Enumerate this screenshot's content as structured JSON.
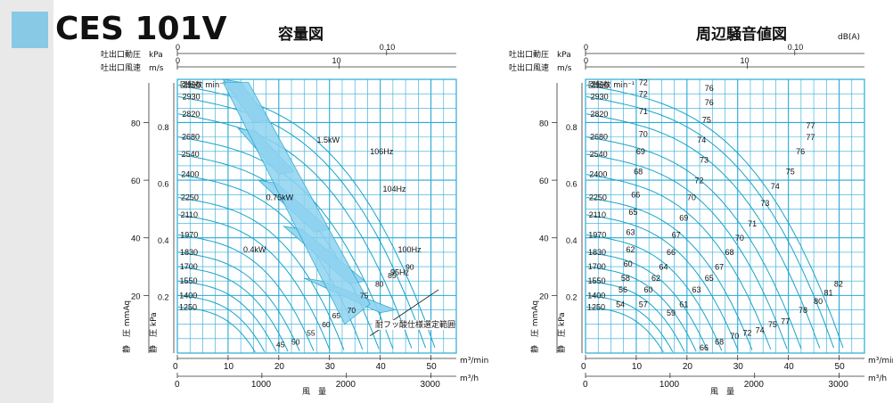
{
  "header": {
    "model": "CES 101V",
    "chart1_title": "容量図",
    "chart2_title": "周辺騒音値図",
    "chart2_unit": "dB(A)"
  },
  "colors": {
    "accent": "#88c9e6",
    "grid": "#2aa9d6",
    "band": "#8fd3f0",
    "curve": "#1aa3c8",
    "sidebar": "#e9e9e9"
  },
  "chart_data": [
    {
      "type": "line",
      "title": "容量図",
      "x_unit_top": "m³/min",
      "x_unit_bottom": "m³/h",
      "xlabel": "風　量",
      "ylabel_left": "静　圧 mmAq",
      "ylabel_right": "静　圧 kPa",
      "top_axes": [
        {
          "label": "吐出口動圧　kPa",
          "ticks": [
            "0",
            "0.10"
          ]
        },
        {
          "label": "吐出口風速　m/s",
          "ticks": [
            "0",
            "10"
          ]
        }
      ],
      "xlim": [
        0,
        55
      ],
      "ylim": [
        0,
        95
      ],
      "x_ticks": [
        0,
        10,
        20,
        30,
        40,
        50
      ],
      "x2_ticks": [
        "0",
        "1000",
        "2000",
        "3000"
      ],
      "y_ticks_mmAq": [
        20,
        40,
        60,
        80
      ],
      "y_ticks_kPa": [
        "0.2",
        "0.4",
        "0.6",
        "0.8"
      ],
      "speed_label_title": "回転数 min⁻¹",
      "speeds": [
        {
          "rpm": "2990",
          "y": 93
        },
        {
          "rpm": "2930",
          "y": 89
        },
        {
          "rpm": "2820",
          "y": 83
        },
        {
          "rpm": "2680",
          "y": 75
        },
        {
          "rpm": "2540",
          "y": 69
        },
        {
          "rpm": "2400",
          "y": 62
        },
        {
          "rpm": "2250",
          "y": 54
        },
        {
          "rpm": "2110",
          "y": 48
        },
        {
          "rpm": "1970",
          "y": 41
        },
        {
          "rpm": "1830",
          "y": 35
        },
        {
          "rpm": "1700",
          "y": 30
        },
        {
          "rpm": "1550",
          "y": 25
        },
        {
          "rpm": "1400",
          "y": 20
        },
        {
          "rpm": "1250",
          "y": 16
        }
      ],
      "power_labels": [
        {
          "text": "1.5kW",
          "x": 27.5,
          "y": 73
        },
        {
          "text": "0.75kW",
          "x": 17.5,
          "y": 53
        },
        {
          "text": "0.4kW",
          "x": 13,
          "y": 35
        }
      ],
      "hz_labels": [
        {
          "text": "106Hz",
          "x": 38,
          "y": 69
        },
        {
          "text": "104Hz",
          "x": 40.5,
          "y": 56
        },
        {
          "text": "100Hz",
          "x": 43.5,
          "y": 35
        },
        {
          "text": "95Hz",
          "x": 42,
          "y": 27
        }
      ],
      "bottom_hz": [
        {
          "text": "45",
          "x": 19.5,
          "y": 2
        },
        {
          "text": "50",
          "x": 22.5,
          "y": 3
        },
        {
          "text": "55",
          "x": 25.5,
          "y": 6
        },
        {
          "text": "60",
          "x": 28.5,
          "y": 9
        },
        {
          "text": "65",
          "x": 30.5,
          "y": 12
        },
        {
          "text": "70",
          "x": 33.5,
          "y": 14
        },
        {
          "text": "75",
          "x": 36,
          "y": 19
        },
        {
          "text": "80",
          "x": 39,
          "y": 23
        },
        {
          "text": "85",
          "x": 41.5,
          "y": 26
        },
        {
          "text": "90",
          "x": 45,
          "y": 29
        }
      ],
      "note": "耐フッ酸仕様選定範囲"
    },
    {
      "type": "line",
      "title": "周辺騒音値図",
      "unit": "dB(A)",
      "x_unit_top": "m³/min",
      "x_unit_bottom": "m³/h",
      "xlabel": "風　量",
      "ylabel_left": "静　圧 mmAq",
      "ylabel_right": "静　圧 kPa",
      "top_axes": [
        {
          "label": "吐出口動圧　kPa",
          "ticks": [
            "0",
            "0.10"
          ]
        },
        {
          "label": "吐出口風速　m/s",
          "ticks": [
            "0",
            "10"
          ]
        }
      ],
      "xlim": [
        0,
        55
      ],
      "ylim": [
        0,
        95
      ],
      "x_ticks": [
        0,
        10,
        20,
        30,
        40,
        50
      ],
      "x2_ticks": [
        "0",
        "1000",
        "2000",
        "3000"
      ],
      "y_ticks_mmAq": [
        20,
        40,
        60,
        80
      ],
      "y_ticks_kPa": [
        "0.2",
        "0.4",
        "0.6",
        "0.8"
      ],
      "speed_label_title": "回転数 min⁻¹",
      "speeds": [
        {
          "rpm": "2990",
          "y": 93
        },
        {
          "rpm": "2930",
          "y": 89
        },
        {
          "rpm": "2820",
          "y": 83
        },
        {
          "rpm": "2680",
          "y": 75
        },
        {
          "rpm": "2540",
          "y": 69
        },
        {
          "rpm": "2400",
          "y": 62
        },
        {
          "rpm": "2250",
          "y": 54
        },
        {
          "rpm": "2110",
          "y": 48
        },
        {
          "rpm": "1970",
          "y": 41
        },
        {
          "rpm": "1830",
          "y": 35
        },
        {
          "rpm": "1700",
          "y": 30
        },
        {
          "rpm": "1550",
          "y": 25
        },
        {
          "rpm": "1400",
          "y": 20
        },
        {
          "rpm": "1250",
          "y": 16
        }
      ],
      "noise_labels": [
        {
          "text": "72",
          "x": 10.5,
          "y": 93
        },
        {
          "text": "72",
          "x": 10.5,
          "y": 89
        },
        {
          "text": "76",
          "x": 23.5,
          "y": 91
        },
        {
          "text": "76",
          "x": 23.5,
          "y": 86
        },
        {
          "text": "71",
          "x": 10.5,
          "y": 83
        },
        {
          "text": "75",
          "x": 23,
          "y": 80
        },
        {
          "text": "77",
          "x": 43.5,
          "y": 78
        },
        {
          "text": "77",
          "x": 43.5,
          "y": 74
        },
        {
          "text": "70",
          "x": 10.5,
          "y": 75
        },
        {
          "text": "74",
          "x": 22,
          "y": 73
        },
        {
          "text": "76",
          "x": 41.5,
          "y": 69
        },
        {
          "text": "69",
          "x": 10,
          "y": 69
        },
        {
          "text": "73",
          "x": 22.5,
          "y": 66
        },
        {
          "text": "75",
          "x": 39.5,
          "y": 62
        },
        {
          "text": "68",
          "x": 9.5,
          "y": 62
        },
        {
          "text": "72",
          "x": 21.5,
          "y": 59
        },
        {
          "text": "74",
          "x": 36.5,
          "y": 57
        },
        {
          "text": "66",
          "x": 9,
          "y": 54
        },
        {
          "text": "70",
          "x": 20,
          "y": 53
        },
        {
          "text": "73",
          "x": 34.5,
          "y": 51
        },
        {
          "text": "65",
          "x": 8.5,
          "y": 48
        },
        {
          "text": "69",
          "x": 18.5,
          "y": 46
        },
        {
          "text": "71",
          "x": 32,
          "y": 44
        },
        {
          "text": "63",
          "x": 8,
          "y": 41
        },
        {
          "text": "67",
          "x": 17,
          "y": 40
        },
        {
          "text": "70",
          "x": 29.5,
          "y": 39
        },
        {
          "text": "62",
          "x": 8,
          "y": 35
        },
        {
          "text": "66",
          "x": 16,
          "y": 34
        },
        {
          "text": "68",
          "x": 27.5,
          "y": 34
        },
        {
          "text": "60",
          "x": 7.5,
          "y": 30
        },
        {
          "text": "64",
          "x": 14.5,
          "y": 29
        },
        {
          "text": "67",
          "x": 25.5,
          "y": 29
        },
        {
          "text": "58",
          "x": 7,
          "y": 25
        },
        {
          "text": "62",
          "x": 13,
          "y": 25
        },
        {
          "text": "65",
          "x": 23.5,
          "y": 25
        },
        {
          "text": "56",
          "x": 6.5,
          "y": 21
        },
        {
          "text": "60",
          "x": 11.5,
          "y": 21
        },
        {
          "text": "63",
          "x": 21,
          "y": 21
        },
        {
          "text": "54",
          "x": 6,
          "y": 16
        },
        {
          "text": "57",
          "x": 10.5,
          "y": 16
        },
        {
          "text": "61",
          "x": 18.5,
          "y": 16
        },
        {
          "text": "59",
          "x": 16,
          "y": 13
        },
        {
          "text": "82",
          "x": 49,
          "y": 23
        },
        {
          "text": "81",
          "x": 47,
          "y": 20
        },
        {
          "text": "80",
          "x": 45,
          "y": 17
        },
        {
          "text": "78",
          "x": 42,
          "y": 14
        },
        {
          "text": "77",
          "x": 38.5,
          "y": 10
        },
        {
          "text": "75",
          "x": 36,
          "y": 9
        },
        {
          "text": "74",
          "x": 33.5,
          "y": 7
        },
        {
          "text": "72",
          "x": 31,
          "y": 6
        },
        {
          "text": "70",
          "x": 28.5,
          "y": 5
        },
        {
          "text": "68",
          "x": 25.5,
          "y": 3
        },
        {
          "text": "66",
          "x": 22.5,
          "y": 1
        }
      ]
    }
  ]
}
